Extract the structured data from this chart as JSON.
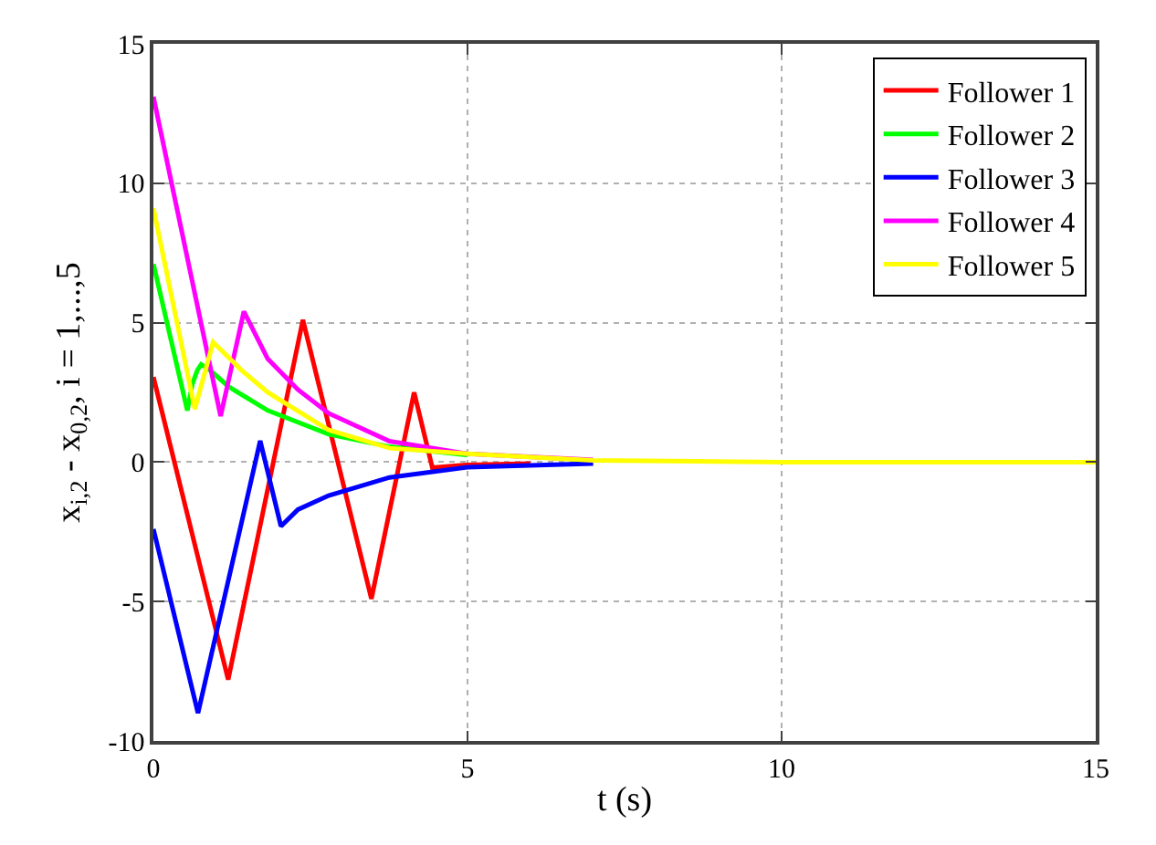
{
  "chart_data": {
    "type": "line",
    "xlabel": "t (s)",
    "ylabel": "x$_{i,2}$ - x$_{0,2}$, i = 1,...,5",
    "xlim": [
      0,
      15
    ],
    "ylim": [
      -10,
      15
    ],
    "xticks": [
      0,
      5,
      10,
      15
    ],
    "yticks": [
      -10,
      -5,
      0,
      5,
      10,
      15
    ],
    "grid": true,
    "legend": "top right",
    "line_style": "solid",
    "marker": "none",
    "series": [
      {
        "name": "Follower 1",
        "color": "#ff0000",
        "x": [
          0,
          1.19,
          2.38,
          3.47,
          4.15,
          4.44,
          5,
          6
        ],
        "values": [
          3.05,
          -7.8,
          5.1,
          -4.9,
          2.5,
          -0.2,
          -0.1,
          -0.05
        ]
      },
      {
        "name": "Follower 2",
        "color": "#00ff00",
        "x": [
          0,
          0.54,
          0.62,
          0.7,
          0.76,
          0.9,
          1.2,
          1.82,
          2.79,
          3.76,
          5
        ],
        "values": [
          7.1,
          1.85,
          2.8,
          3.3,
          3.5,
          3.3,
          2.7,
          1.85,
          1.0,
          0.55,
          0.25
        ]
      },
      {
        "name": "Follower 3",
        "color": "#0000ff",
        "x": [
          0,
          0.71,
          1.7,
          2.03,
          2.3,
          2.79,
          3.76,
          5,
          7
        ],
        "values": [
          -2.4,
          -9.0,
          0.76,
          -2.3,
          -1.7,
          -1.2,
          -0.55,
          -0.18,
          -0.05
        ]
      },
      {
        "name": "Follower 4",
        "color": "#ff00ff",
        "x": [
          0,
          1.07,
          1.44,
          1.82,
          2.3,
          2.79,
          3.76,
          5,
          7
        ],
        "values": [
          13.1,
          1.65,
          5.4,
          3.7,
          2.6,
          1.75,
          0.75,
          0.3,
          0.08
        ]
      },
      {
        "name": "Follower 5",
        "color": "#ffff00",
        "x": [
          0,
          0.66,
          0.95,
          1.4,
          1.82,
          2.79,
          3.76,
          5,
          7,
          10,
          15
        ],
        "values": [
          9.1,
          1.9,
          4.3,
          3.3,
          2.5,
          1.15,
          0.5,
          0.3,
          0.06,
          0,
          0
        ]
      }
    ]
  }
}
